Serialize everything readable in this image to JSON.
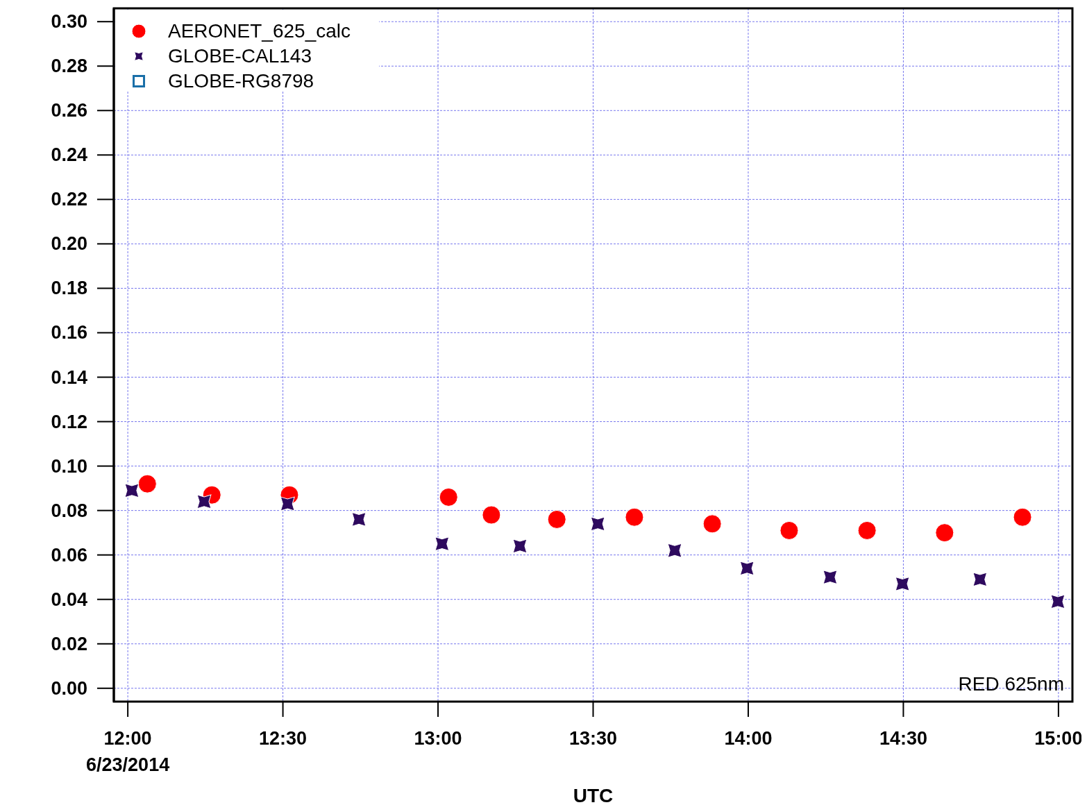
{
  "chart_data": {
    "type": "scatter",
    "xlabel": "UTC",
    "xlim": [
      11.955,
      15.045
    ],
    "ylim": [
      -0.006,
      0.306
    ],
    "xticks": [
      {
        "value": 12,
        "label": "12:00\n6/23/2014"
      },
      {
        "value": 12.5,
        "label": "12:30"
      },
      {
        "value": 13,
        "label": "13:00"
      },
      {
        "value": 13.5,
        "label": "13:30"
      },
      {
        "value": 14,
        "label": "14:00"
      },
      {
        "value": 14.5,
        "label": "14:30"
      },
      {
        "value": 15,
        "label": "15:00"
      }
    ],
    "yticks": [
      {
        "value": 0,
        "label": "0.00"
      },
      {
        "value": 0.02,
        "label": "0.02"
      },
      {
        "value": 0.04,
        "label": "0.04"
      },
      {
        "value": 0.06,
        "label": "0.06"
      },
      {
        "value": 0.08,
        "label": "0.08"
      },
      {
        "value": 0.1,
        "label": "0.10"
      },
      {
        "value": 0.12,
        "label": "0.12"
      },
      {
        "value": 0.14,
        "label": "0.14"
      },
      {
        "value": 0.16,
        "label": "0.16"
      },
      {
        "value": 0.18,
        "label": "0.18"
      },
      {
        "value": 0.2,
        "label": "0.20"
      },
      {
        "value": 0.22,
        "label": "0.22"
      },
      {
        "value": 0.24,
        "label": "0.24"
      },
      {
        "value": 0.26,
        "label": "0.26"
      },
      {
        "value": 0.28,
        "label": "0.28"
      },
      {
        "value": 0.3,
        "label": "0.30"
      }
    ],
    "grid": true,
    "legend": "top left",
    "annotations": [
      "RED 625nm"
    ],
    "series": [
      {
        "name": "AERONET_625_calc",
        "color": "#ff0000",
        "marker": "circle",
        "x": [
          12.063,
          12.271,
          12.521,
          13.034,
          13.172,
          13.383,
          13.633,
          13.884,
          14.132,
          14.383,
          14.633,
          14.884
        ],
        "values": [
          0.092,
          0.087,
          0.087,
          0.086,
          0.078,
          0.076,
          0.077,
          0.074,
          0.071,
          0.071,
          0.07,
          0.077
        ]
      },
      {
        "name": "GLOBE-CAL143",
        "color": "#2e0a5e",
        "marker": "star",
        "x": [
          12.013,
          12.246,
          12.515,
          12.745,
          13.013,
          13.264,
          13.515,
          13.763,
          13.996,
          14.264,
          14.497,
          14.747,
          14.998
        ],
        "values": [
          0.089,
          0.084,
          0.083,
          0.076,
          0.065,
          0.064,
          0.074,
          0.062,
          0.054,
          0.05,
          0.047,
          0.049,
          0.039
        ]
      },
      {
        "name": "GLOBE-RG8798",
        "color": "#1a6fa8",
        "marker": "square"
      }
    ]
  }
}
